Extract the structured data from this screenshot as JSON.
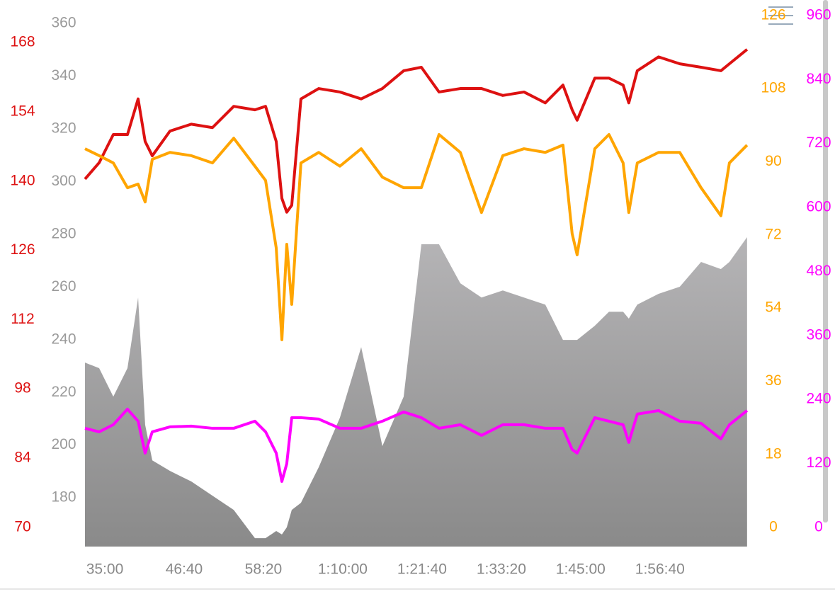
{
  "chart_data": {
    "type": "line",
    "x": [
      1925,
      2050,
      2175,
      2300,
      2394,
      2456,
      2519,
      2675,
      2863,
      3050,
      3238,
      3425,
      3519,
      3613,
      3663,
      3706,
      3750,
      3831,
      3988,
      4175,
      4363,
      4550,
      4738,
      4894,
      5050,
      5238,
      5425,
      5613,
      5800,
      5988,
      6144,
      6225,
      6269,
      6425,
      6550,
      6675,
      6725,
      6800,
      6988,
      7175,
      7363,
      7538,
      7613,
      7769
    ],
    "xlim": [
      1925,
      7770
    ],
    "xticks": [
      {
        "value": 2100,
        "label": "35:00"
      },
      {
        "value": 2800,
        "label": "46:40"
      },
      {
        "value": 3500,
        "label": "58:20"
      },
      {
        "value": 4200,
        "label": "1:10:00"
      },
      {
        "value": 4900,
        "label": "1:21:40"
      },
      {
        "value": 5600,
        "label": "1:33:20"
      },
      {
        "value": 6300,
        "label": "1:45:00"
      },
      {
        "value": 7000,
        "label": "1:56:40"
      }
    ],
    "ylim": [
      161.5,
      368.9
    ],
    "yticks": [
      180,
      200,
      220,
      240,
      260,
      280,
      300,
      320,
      340,
      360
    ],
    "y2lim": [
      66.1,
      176.6
    ],
    "y2ticks": [
      70,
      84,
      98,
      112,
      126,
      140,
      154,
      168
    ],
    "y3lim": [
      -4.7,
      129.8
    ],
    "y3ticks": [
      0,
      18,
      36,
      54,
      72,
      90,
      108,
      126
    ],
    "y4lim": [
      -35.9,
      989
    ],
    "y4ticks": [
      0,
      120,
      240,
      360,
      480,
      600,
      720,
      840,
      960
    ],
    "series": [
      {
        "style": "area",
        "axis": "y",
        "color": "#999999",
        "values": [
          231.3,
          229.2,
          218.4,
          229.2,
          256,
          207.7,
          194.2,
          190.2,
          186.2,
          180.8,
          175.4,
          164.7,
          164.7,
          167.4,
          166.1,
          168.8,
          175.4,
          178.1,
          191.6,
          210.4,
          237.2,
          199.6,
          218.4,
          276.2,
          276.2,
          261.4,
          256,
          258.7,
          256,
          253.3,
          239.9,
          239.9,
          239.9,
          245.3,
          250.6,
          250.6,
          248,
          253.3,
          257.4,
          260.1,
          269.5,
          266.8,
          269.5,
          278.9
        ]
      },
      {
        "style": "line",
        "axis": "y2",
        "color": "#dd1111",
        "values": [
          140.4,
          143.7,
          149.4,
          149.4,
          156.6,
          148,
          145.1,
          150.1,
          151.5,
          150.8,
          155.1,
          154.4,
          155.1,
          148,
          136.5,
          133.7,
          135.1,
          156.6,
          158.7,
          158,
          156.6,
          158.7,
          162.3,
          163,
          158,
          158.7,
          158.7,
          157.3,
          158,
          155.8,
          159.4,
          154.4,
          152.3,
          160.8,
          160.8,
          159.4,
          155.8,
          162.3,
          165.1,
          163.7,
          163,
          162.3,
          163.7,
          166.6
        ]
      },
      {
        "style": "line",
        "axis": "y3",
        "color": "#ffa500",
        "values": [
          93.2,
          91.5,
          89.7,
          83.6,
          84.5,
          80.1,
          90.6,
          92.3,
          91.5,
          89.7,
          95.8,
          88.9,
          85.4,
          68.8,
          46.2,
          69.7,
          54.9,
          89.7,
          92.3,
          88.9,
          93.2,
          86.2,
          83.6,
          83.6,
          96.7,
          92.3,
          77.5,
          91.5,
          93.2,
          92.3,
          94.1,
          72.3,
          67.1,
          93.2,
          96.7,
          89.7,
          77.5,
          89.7,
          92.3,
          92.3,
          83.6,
          76.7,
          89.7,
          94.1
        ]
      },
      {
        "style": "line",
        "axis": "y4",
        "color": "#ff00ff",
        "values": [
          185.9,
          179.3,
          192.6,
          221.8,
          199.2,
          139.4,
          179.3,
          188.6,
          189.9,
          185.9,
          185.9,
          199.2,
          179.3,
          139.4,
          86.3,
          119.5,
          205.8,
          205.8,
          203.2,
          185.9,
          185.9,
          199.2,
          216.5,
          205.8,
          185.9,
          192.6,
          172.6,
          192.6,
          192.6,
          185.9,
          185.9,
          146.1,
          139.4,
          205.8,
          199.2,
          192.6,
          159.4,
          212.5,
          219.1,
          199.2,
          195.2,
          166,
          192.6,
          219.1
        ]
      }
    ]
  }
}
